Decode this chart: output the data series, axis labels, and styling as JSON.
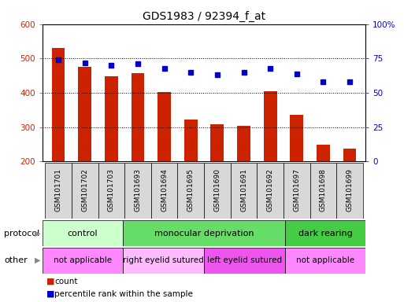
{
  "title": "GDS1983 / 92394_f_at",
  "samples": [
    "GSM101701",
    "GSM101702",
    "GSM101703",
    "GSM101693",
    "GSM101694",
    "GSM101695",
    "GSM101690",
    "GSM101691",
    "GSM101692",
    "GSM101697",
    "GSM101698",
    "GSM101699"
  ],
  "counts": [
    530,
    475,
    448,
    458,
    402,
    322,
    308,
    303,
    405,
    335,
    249,
    238
  ],
  "percentiles": [
    74,
    72,
    70,
    71,
    68,
    65,
    63,
    65,
    68,
    64,
    58,
    58
  ],
  "ymin": 200,
  "ymax": 600,
  "y2min": 0,
  "y2max": 100,
  "bar_color": "#cc2200",
  "dot_color": "#0000cc",
  "yticks": [
    200,
    300,
    400,
    500,
    600
  ],
  "y2ticks": [
    0,
    25,
    50,
    75,
    100
  ],
  "protocol_groups": [
    {
      "label": "control",
      "start": 0,
      "end": 3,
      "color": "#ccffcc"
    },
    {
      "label": "monocular deprivation",
      "start": 3,
      "end": 9,
      "color": "#66dd66"
    },
    {
      "label": "dark rearing",
      "start": 9,
      "end": 12,
      "color": "#44cc44"
    }
  ],
  "other_groups": [
    {
      "label": "not applicable",
      "start": 0,
      "end": 3,
      "color": "#ff88ff"
    },
    {
      "label": "right eyelid sutured",
      "start": 3,
      "end": 6,
      "color": "#ffbbff"
    },
    {
      "label": "left eyelid sutured",
      "start": 6,
      "end": 9,
      "color": "#ee55ee"
    },
    {
      "label": "not applicable",
      "start": 9,
      "end": 12,
      "color": "#ff88ff"
    }
  ],
  "legend_count_label": "count",
  "legend_pct_label": "percentile rank within the sample",
  "protocol_label": "protocol",
  "other_label": "other",
  "figwidth": 5.13,
  "figheight": 3.84,
  "dpi": 100
}
